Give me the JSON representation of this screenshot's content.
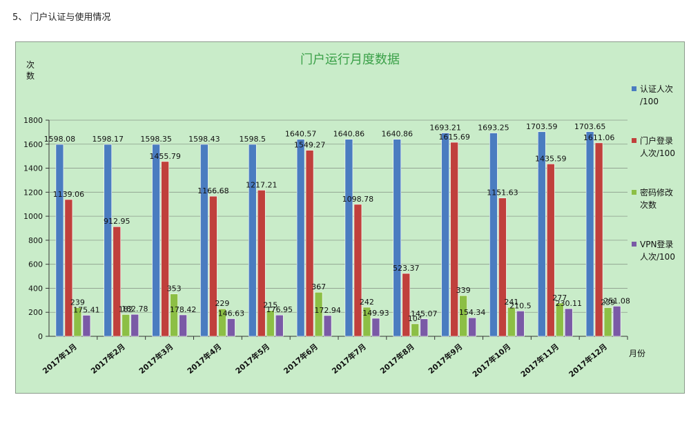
{
  "heading": "5、 门户认证与使用情况",
  "chart_data": {
    "type": "bar",
    "title": "门户运行月度数据",
    "ylabel": [
      "次",
      "数"
    ],
    "xlabel": "月份",
    "ylim": [
      0,
      1800
    ],
    "yticks": [
      0,
      200,
      400,
      600,
      800,
      1000,
      1200,
      1400,
      1600,
      1800
    ],
    "grid": true,
    "legend_position": "right",
    "categories": [
      "2017年1月",
      "2017年2月",
      "2017年3月",
      "2017年4月",
      "2017年5月",
      "2017年6月",
      "2017年7月",
      "2017年8月",
      "2017年9月",
      "2017年10月",
      "2017年11月",
      "2017年12月"
    ],
    "series": [
      {
        "name": [
          "认证人次",
          "/100"
        ],
        "color": "#4a7cc0",
        "values": [
          1598.08,
          1598.17,
          1598.35,
          1598.43,
          1598.5,
          1640.57,
          1640.86,
          1640.86,
          1693.21,
          1693.25,
          1703.59,
          1703.65
        ]
      },
      {
        "name": [
          "门户登录",
          "人次/100"
        ],
        "color": "#c0403c",
        "values": [
          1139.06,
          912.95,
          1455.79,
          1166.68,
          1217.21,
          1549.27,
          1098.78,
          523.37,
          1615.69,
          1151.63,
          1435.59,
          1611.06
        ]
      },
      {
        "name": [
          "密码修改",
          "次数"
        ],
        "color": "#8cbf45",
        "values": [
          239,
          182,
          353,
          229,
          215,
          367,
          242,
          104,
          339,
          241,
          277,
          239
        ]
      },
      {
        "name": [
          "VPN登录",
          "人次/100"
        ],
        "color": "#7a5aa6",
        "values": [
          175.41,
          182.78,
          178.42,
          146.63,
          176.95,
          172.94,
          149.93,
          145.07,
          154.34,
          210.5,
          230.11,
          251.08
        ]
      }
    ]
  }
}
